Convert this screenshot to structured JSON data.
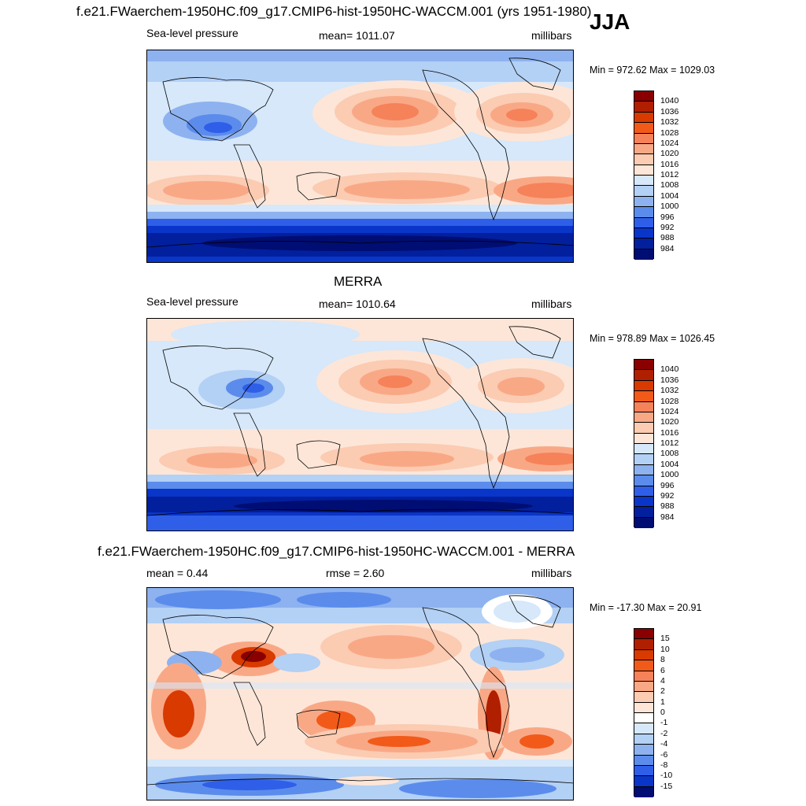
{
  "season": "JJA",
  "panels": [
    {
      "title": "f.e21.FWaerchem-1950HC.f09_g17.CMIP6-hist-1950HC-WACCM.001 (yrs 1951-1980)",
      "left_label": "Sea-level pressure",
      "center_label": "mean= 1011.07",
      "right_label": "millibars",
      "minmax": "Min = 972.62 Max = 1029.03"
    },
    {
      "title": "MERRA",
      "left_label": "Sea-level pressure",
      "center_label": "mean= 1010.64",
      "right_label": "millibars",
      "minmax": "Min = 978.89 Max = 1026.45"
    },
    {
      "title": "f.e21.FWaerchem-1950HC.f09_g17.CMIP6-hist-1950HC-WACCM.001 - MERRA",
      "left_label": "mean =   0.44",
      "center_label": "rmse =   2.60",
      "right_label": "millibars",
      "minmax": "Min = -17.30 Max =  20.91"
    }
  ],
  "colorbar_abs": {
    "labels": [
      "1040",
      "1036",
      "1032",
      "1028",
      "1024",
      "1020",
      "1016",
      "1012",
      "1008",
      "1004",
      "1000",
      "996",
      "992",
      "988",
      "984"
    ],
    "colors": [
      "#8a0000",
      "#b01f00",
      "#d83a00",
      "#f25a1a",
      "#f6825a",
      "#f9a886",
      "#fbcbb2",
      "#fde6d8",
      "#d6e8fa",
      "#b3d0f5",
      "#8db2ef",
      "#5b8cec",
      "#2f5fe8",
      "#0a35c9",
      "#021f9e",
      "#000d73"
    ]
  },
  "colorbar_diff": {
    "labels": [
      "15",
      "10",
      "8",
      "6",
      "4",
      "2",
      "1",
      "0",
      "-1",
      "-2",
      "-4",
      "-6",
      "-8",
      "-10",
      "-15"
    ],
    "colors": [
      "#8a0000",
      "#b01f00",
      "#d83a00",
      "#f25a1a",
      "#f6825a",
      "#f9a886",
      "#fbcbb2",
      "#fde6d8",
      "#ffffff",
      "#d6e8fa",
      "#b3d0f5",
      "#8db2ef",
      "#5b8cec",
      "#2f5fe8",
      "#0a35c9",
      "#000d73"
    ]
  }
}
